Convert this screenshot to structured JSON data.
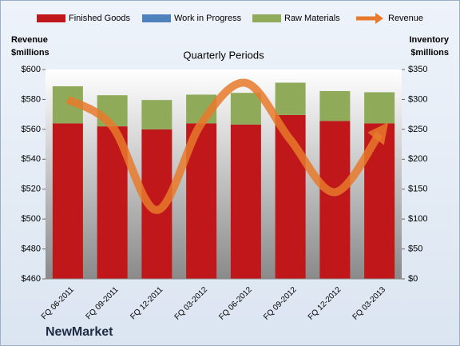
{
  "chart_data": {
    "type": "bar",
    "stacked": true,
    "title": "Quarterly Periods",
    "ylabel": "Revenue $millions",
    "y2label": "Inventory $millions",
    "company": "NewMarket",
    "categories": [
      "FQ 06-2011",
      "FQ 09-2011",
      "FQ 12-2011",
      "FQ 03-2012",
      "FQ 06-2012",
      "FQ 09-2012",
      "FQ 12-2012",
      "FQ 03-2013"
    ],
    "series": [
      {
        "name": "Finished Goods",
        "color": "#c0171a",
        "axis": "y2",
        "values": [
          260,
          255,
          250,
          260,
          258,
          274,
          264,
          260
        ]
      },
      {
        "name": "Work in Progress",
        "color": "#4f81bd",
        "axis": "y2",
        "values": [
          0,
          0,
          0,
          0,
          0,
          0,
          0,
          0
        ]
      },
      {
        "name": "Raw Materials",
        "color": "#8fab5a",
        "axis": "y2",
        "values": [
          62,
          52,
          49,
          48,
          53,
          54,
          50,
          52
        ]
      },
      {
        "name": "Revenue",
        "color": "#e8792c",
        "type": "line",
        "axis": "y",
        "values": [
          580,
          562,
          506,
          564,
          591,
          553,
          518,
          557
        ]
      }
    ],
    "ylim": [
      460,
      600
    ],
    "yticks": [
      {
        "value": 460,
        "label": "$460"
      },
      {
        "value": 480,
        "label": "$480"
      },
      {
        "value": 500,
        "label": "$500"
      },
      {
        "value": 520,
        "label": "$520"
      },
      {
        "value": 540,
        "label": "$540"
      },
      {
        "value": 560,
        "label": "$560"
      },
      {
        "value": 580,
        "label": "$580"
      },
      {
        "value": 600,
        "label": "$600"
      }
    ],
    "y2lim": [
      0,
      350
    ],
    "y2ticks": [
      {
        "value": 0,
        "label": "$0"
      },
      {
        "value": 50,
        "label": "$50"
      },
      {
        "value": 100,
        "label": "$100"
      },
      {
        "value": 150,
        "label": "$150"
      },
      {
        "value": 200,
        "label": "$200"
      },
      {
        "value": 250,
        "label": "$250"
      },
      {
        "value": 300,
        "label": "$300"
      },
      {
        "value": 350,
        "label": "$350"
      }
    ]
  }
}
